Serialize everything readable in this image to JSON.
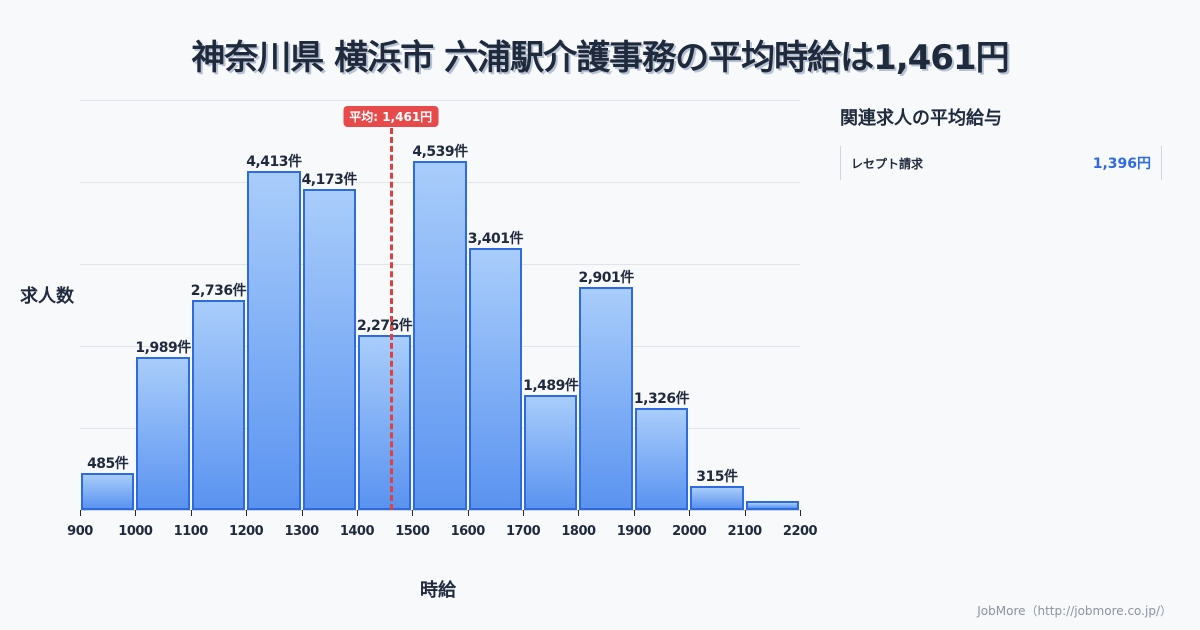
{
  "title": "神奈川県 横浜市 六浦駅介護事務の平均時給は1,461円",
  "chart_data": {
    "type": "bar",
    "title": "神奈川県 横浜市 六浦駅介護事務の平均時給は1,461円",
    "xlabel": "時給",
    "ylabel": "求人数",
    "x_ticks": [
      "900",
      "1000",
      "1100",
      "1200",
      "1300",
      "1400",
      "1500",
      "1600",
      "1700",
      "1800",
      "1900",
      "2000",
      "2100",
      "2200"
    ],
    "categories": [
      "900-1000",
      "1000-1100",
      "1100-1200",
      "1200-1300",
      "1300-1400",
      "1400-1500",
      "1500-1600",
      "1600-1700",
      "1700-1800",
      "1800-1900",
      "1900-2000",
      "2000-2100",
      "2100-2200"
    ],
    "values": [
      485,
      1989,
      2736,
      4413,
      4173,
      2276,
      4539,
      3401,
      1489,
      2901,
      1326,
      315,
      117
    ],
    "labels": [
      "485件",
      "1,989件",
      "2,736件",
      "4,413件",
      "4,173件",
      "2,276件",
      "4,539件",
      "3,401件",
      "1,489件",
      "2,901件",
      "1,326件",
      "315件",
      ""
    ],
    "xlim": [
      900,
      2200
    ],
    "ylim": [
      0,
      5330
    ],
    "grid": true,
    "mean": 1461,
    "mean_label": "平均: 1,461円",
    "colors": {
      "bar_fill_top": "#a9cdfb",
      "bar_fill_bottom": "#5a93f0",
      "bar_border": "#2f6be0",
      "mean_line": "#e0413f"
    }
  },
  "sidebar": {
    "title": "関連求人の平均給与",
    "items": [
      {
        "label": "レセプト請求",
        "value": "1,396円"
      }
    ]
  },
  "credit": "JobMore（http://jobmore.co.jp/）"
}
